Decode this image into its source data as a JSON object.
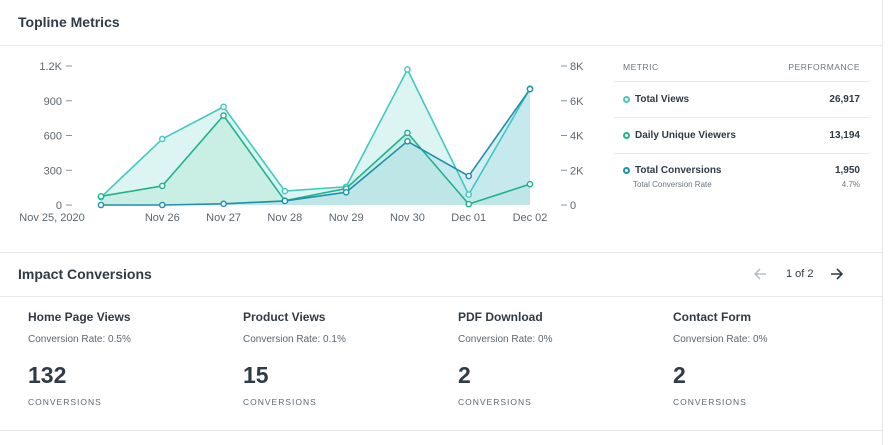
{
  "topline": {
    "title": "Topline Metrics"
  },
  "chart_data": {
    "type": "line",
    "categories": [
      "Nov 25, 2020",
      "Nov 26",
      "Nov 27",
      "Nov 28",
      "Nov 29",
      "Nov 30",
      "Dec 01",
      "Dec 02"
    ],
    "y_left": {
      "ylim": [
        0,
        1200
      ],
      "ticks": [
        0,
        300,
        600,
        900,
        1200
      ],
      "tick_labels": [
        "0",
        "300",
        "600",
        "900",
        "1.2K"
      ]
    },
    "y_right": {
      "ylim": [
        0,
        8000
      ],
      "ticks": [
        0,
        2000,
        4000,
        6000,
        8000
      ],
      "tick_labels": [
        "0",
        "2K",
        "4K",
        "6K",
        "8K"
      ]
    },
    "series": [
      {
        "name": "Total Views",
        "axis": "right",
        "color": "#40c9c0",
        "fill": "#bfecea",
        "values": [
          450,
          3800,
          5650,
          800,
          1050,
          7800,
          600,
          6700
        ]
      },
      {
        "name": "Daily Unique Viewers",
        "axis": "right",
        "color": "#1fb28c",
        "fill": "#b9e9d7",
        "values": [
          500,
          1100,
          5150,
          250,
          950,
          4150,
          50,
          1200
        ]
      },
      {
        "name": "Total Conversions",
        "axis": "left",
        "color": "#1f8fae",
        "fill": "#b5dfe8",
        "values": [
          0,
          0,
          10,
          35,
          110,
          550,
          250,
          1000
        ]
      }
    ],
    "grid": false,
    "legend": "none"
  },
  "metrics": {
    "col_metric": "METRIC",
    "col_performance": "PERFORMANCE",
    "rows": [
      {
        "label": "Total Views",
        "value": "26,917",
        "color": "#40c9c0"
      },
      {
        "label": "Daily Unique Viewers",
        "value": "13,194",
        "color": "#1fb28c"
      },
      {
        "label": "Total Conversions",
        "value": "1,950",
        "color": "#1f8fae",
        "sub_label": "Total Conversion Rate",
        "sub_value": "4.7%"
      }
    ]
  },
  "impact": {
    "title": "Impact Conversions",
    "pager": "1 of 2",
    "cards": [
      {
        "title": "Home Page Views",
        "rate": "Conversion Rate: 0.5%",
        "count": "132",
        "unit": "CONVERSIONS"
      },
      {
        "title": "Product Views",
        "rate": "Conversion Rate: 0.1%",
        "count": "15",
        "unit": "CONVERSIONS"
      },
      {
        "title": "PDF Download",
        "rate": "Conversion Rate: 0%",
        "count": "2",
        "unit": "CONVERSIONS"
      },
      {
        "title": "Contact Form",
        "rate": "Conversion Rate: 0%",
        "count": "2",
        "unit": "CONVERSIONS"
      }
    ]
  }
}
